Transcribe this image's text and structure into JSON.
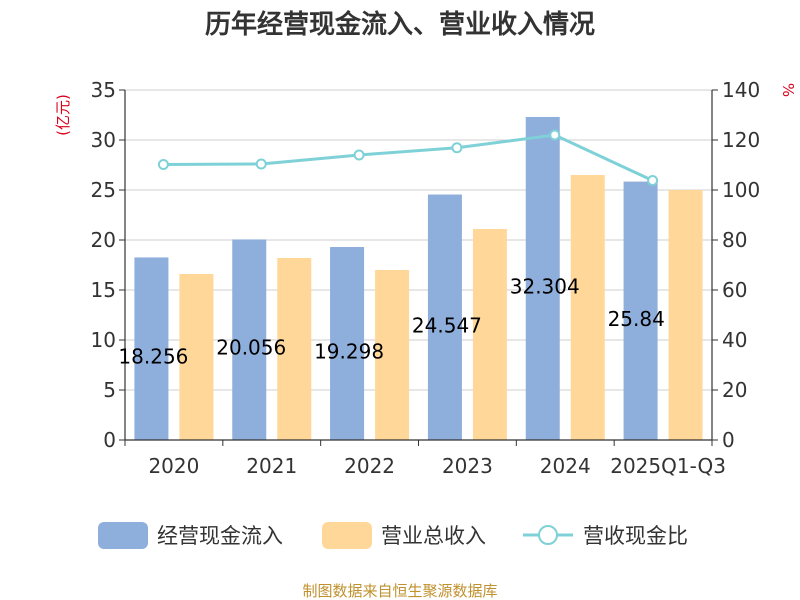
{
  "chart_data": {
    "type": "bar",
    "title": "历年经营现金流入、营业收入情况",
    "categories": [
      "2020",
      "2021",
      "2022",
      "2023",
      "2024",
      "2025Q1-Q3"
    ],
    "left_axis_unit": "(亿元)",
    "right_axis_unit": "%",
    "ylim_left": [
      0,
      35
    ],
    "ylim_right": [
      0,
      140
    ],
    "yticks_left": [
      "0",
      "5",
      "10",
      "15",
      "20",
      "25",
      "30",
      "35"
    ],
    "yticks_right": [
      "0",
      "20",
      "40",
      "60",
      "80",
      "100",
      "120",
      "140"
    ],
    "grid": true,
    "legend_position": "bottom",
    "series": [
      {
        "name": "经营现金流入",
        "type": "bar",
        "axis": "left",
        "color": "#8eaedb",
        "values": [
          18.256,
          20.056,
          19.298,
          24.547,
          32.304,
          25.84
        ],
        "labels": [
          "18.256",
          "20.056",
          "19.298",
          "24.547",
          "32.304",
          "25.84"
        ]
      },
      {
        "name": "营业总收入",
        "type": "bar",
        "axis": "left",
        "color": "#ffd899",
        "values": [
          16.6,
          18.2,
          17.0,
          21.1,
          26.5,
          25.0
        ]
      },
      {
        "name": "营收现金比",
        "type": "line",
        "axis": "right",
        "color": "#7fd1d8",
        "values": [
          110.2,
          110.4,
          114.0,
          116.9,
          122.0,
          103.8
        ]
      }
    ],
    "source": "制图数据来自恒生聚源数据库"
  }
}
